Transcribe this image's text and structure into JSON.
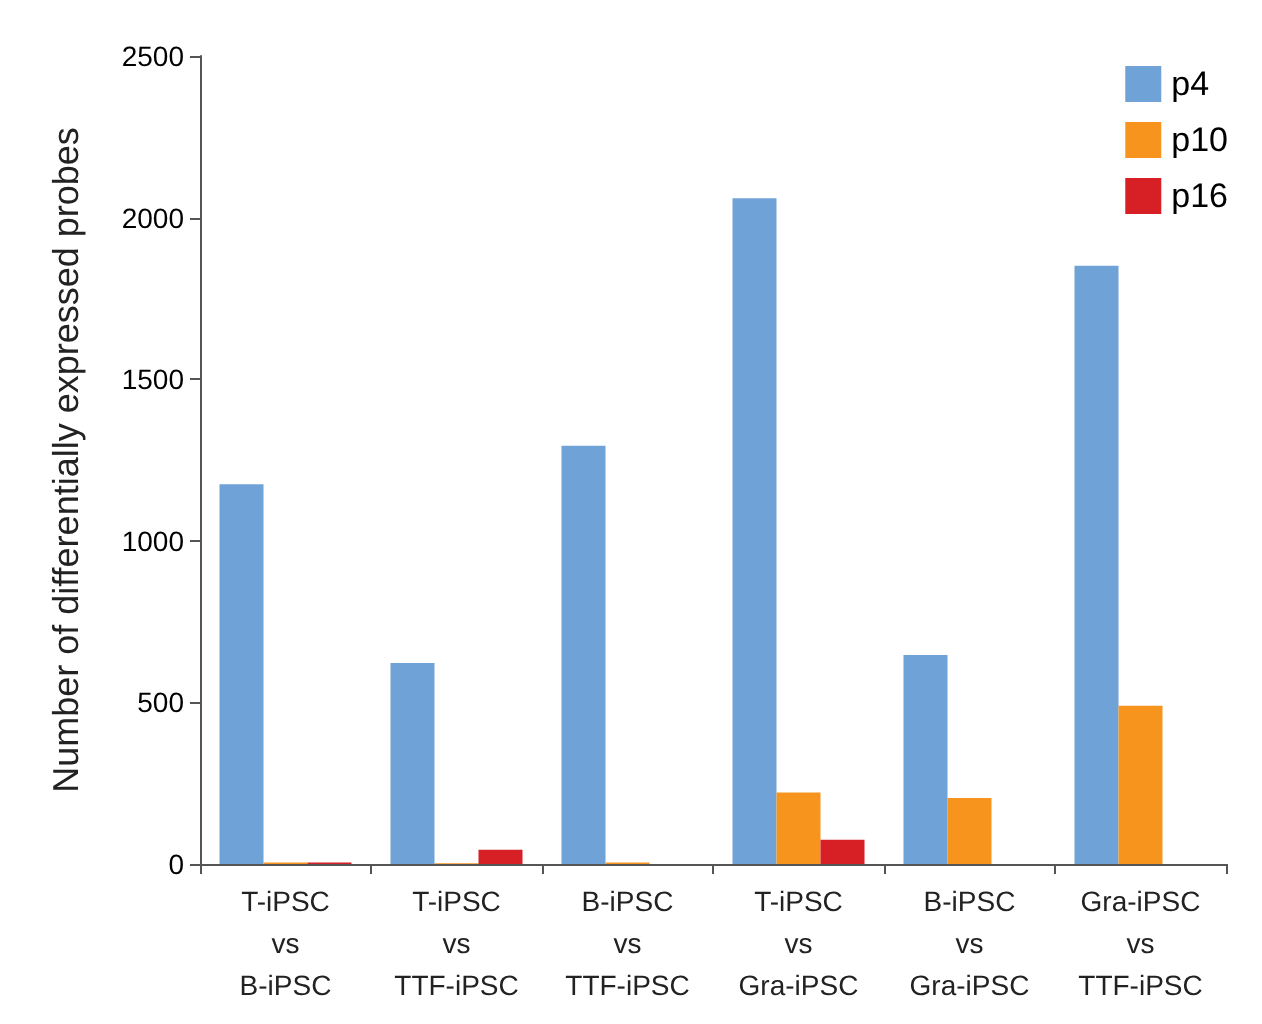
{
  "chart_data": {
    "type": "bar",
    "ylabel": "Number of differentially expressed probes",
    "categories": [
      "T-iPSC\nvs\nB-iPSC",
      "T-iPSC\nvs\nTTF-iPSC",
      "B-iPSC\nvs\nTTF-iPSC",
      "T-iPSC\nvs\nGra-iPSC",
      "B-iPSC\nvs\nGra-iPSC",
      "Gra-iPSC\nvs\nTTF-iPSC"
    ],
    "series": [
      {
        "name": "p4",
        "color": "#6fa2d6",
        "values": [
          1175,
          622,
          1294,
          2060,
          647,
          1851
        ]
      },
      {
        "name": "p10",
        "color": "#f7941d",
        "values": [
          5,
          2,
          5,
          221,
          204,
          490
        ]
      },
      {
        "name": "p16",
        "color": "#d71f26",
        "values": [
          5,
          44,
          0,
          75,
          0,
          0
        ]
      }
    ],
    "ylim": [
      0,
      2500
    ],
    "yticks": [
      0,
      500,
      1000,
      1500,
      2000,
      2500
    ],
    "grid": false,
    "legend": "top right"
  }
}
